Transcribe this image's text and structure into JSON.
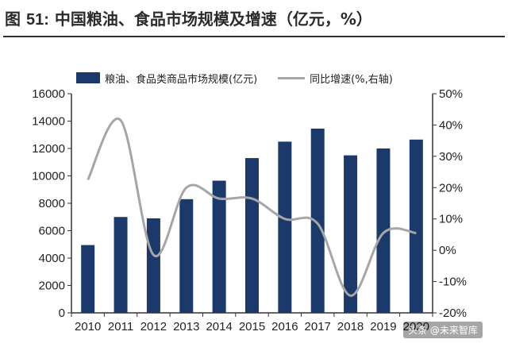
{
  "figure": {
    "title_prefix": "图",
    "title_number": "51:",
    "title_text": "中国粮油、食品市场规模及增速（亿元，%）"
  },
  "watermark": "头条 @未来智库",
  "colors": {
    "bar": "#1b3a6b",
    "line": "#a6a6a6",
    "axis": "#333333"
  },
  "chart_data": {
    "type": "bar",
    "title": "",
    "categories": [
      "2010",
      "2011",
      "2012",
      "2013",
      "2014",
      "2015",
      "2016",
      "2017",
      "2018",
      "2019",
      "2020"
    ],
    "series": [
      {
        "name": "粮油、食品类商品市场规模(亿元)",
        "type": "bar",
        "axis": "left",
        "values": [
          4950,
          7000,
          6900,
          8300,
          9650,
          11300,
          12500,
          13450,
          11500,
          12000,
          12650
        ]
      },
      {
        "name": "同比增速(%,右轴)",
        "type": "line",
        "axis": "right",
        "values": [
          22.5,
          41.5,
          -1.5,
          20,
          16.5,
          16.5,
          10,
          8.5,
          -14.5,
          5.5,
          5.5
        ]
      }
    ],
    "y_left": {
      "lim": [
        0,
        16000
      ],
      "ticks": [
        "0",
        "2000",
        "4000",
        "6000",
        "8000",
        "10000",
        "12000",
        "14000",
        "16000"
      ]
    },
    "y_right": {
      "lim": [
        -20,
        50
      ],
      "ticks": [
        "-20%",
        "-10%",
        "0%",
        "10%",
        "20%",
        "30%",
        "40%",
        "50%"
      ]
    },
    "x_tick_labels": [
      "2010",
      "2011",
      "2012",
      "2013",
      "2014",
      "2015",
      "2016",
      "2017",
      "2018",
      "2019",
      "2020"
    ],
    "grid": false,
    "legend_position": "top"
  }
}
